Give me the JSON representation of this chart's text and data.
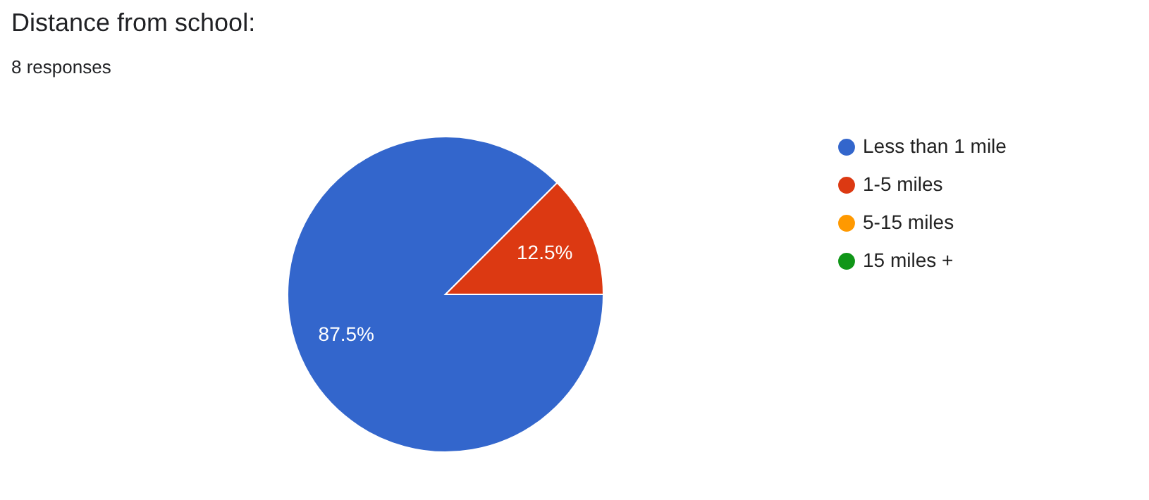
{
  "chart_data": {
    "type": "pie",
    "title": "Distance from school:",
    "subtitle": "8 responses",
    "categories": [
      "Less than 1 mile",
      "1-5 miles",
      "5-15 miles",
      "15 miles +"
    ],
    "values": [
      87.5,
      12.5,
      0,
      0
    ],
    "colors": [
      "#3366cc",
      "#dc3912",
      "#ff9900",
      "#109618"
    ],
    "value_labels": [
      "87.5%",
      "12.5%",
      null,
      null
    ],
    "legend": "right"
  }
}
